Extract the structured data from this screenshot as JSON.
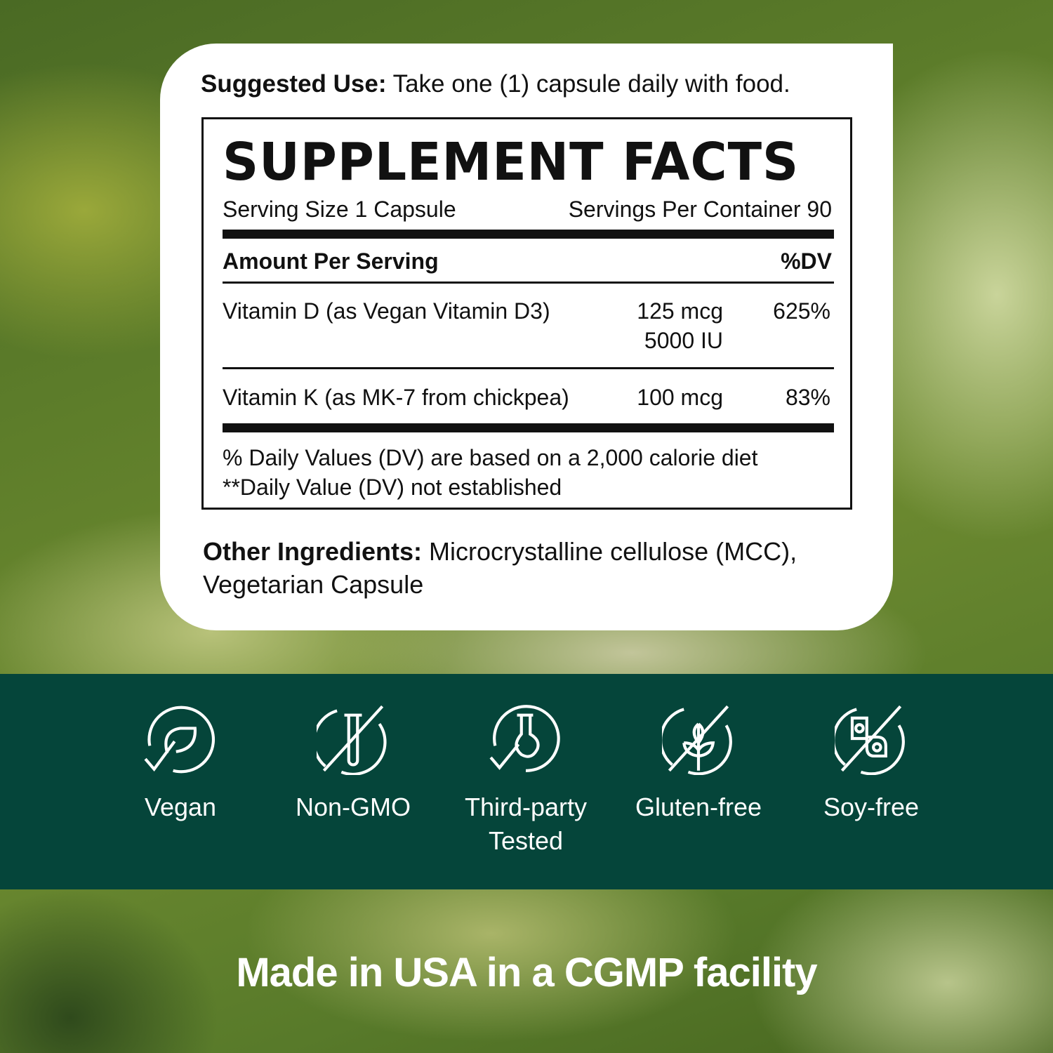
{
  "suggested_use": {
    "label": "Suggested Use:",
    "text": " Take one (1) capsule daily with food."
  },
  "facts": {
    "title": "SUPPLEMENT FACTS",
    "serving_size": "Serving Size 1 Capsule",
    "servings_per_container": "Servings Per Container 90",
    "amount_header": "Amount Per Serving",
    "dv_header": "%DV",
    "rows": [
      {
        "name": "Vitamin D (as Vegan Vitamin D3)",
        "amount": "125 mcg",
        "amount2": "5000 IU",
        "dv": "625%"
      },
      {
        "name": "Vitamin K (as MK-7 from chickpea)",
        "amount": "100 mcg",
        "dv": "83%"
      }
    ],
    "footnote1": "% Daily Values (DV) are based on a 2,000 calorie diet",
    "footnote2": "**Daily Value (DV) not established"
  },
  "other_ingredients": {
    "label": "Other Ingredients:",
    "text": " Microcrystalline cellulose (MCC), Vegetarian Capsule"
  },
  "badges": [
    {
      "icon": "vegan-leaf-check-icon",
      "label": "Vegan"
    },
    {
      "icon": "non-gmo-test-tube-icon",
      "label": "Non-GMO"
    },
    {
      "icon": "flask-check-icon",
      "label": "Third-party Tested"
    },
    {
      "icon": "gluten-free-wheat-icon",
      "label": "Gluten-free"
    },
    {
      "icon": "soy-free-icon",
      "label": "Soy-free"
    }
  ],
  "footer": "Made in USA in a CGMP facility",
  "colors": {
    "band": "#05453a",
    "card": "#ffffff",
    "text": "#111111"
  }
}
